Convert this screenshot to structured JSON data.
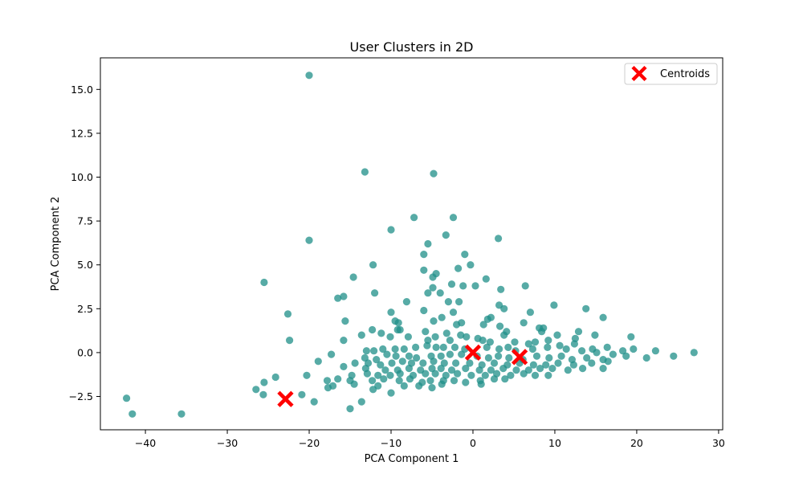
{
  "chart_data": {
    "type": "scatter",
    "title": "User Clusters in 2D",
    "xlabel": "PCA Component 1",
    "ylabel": "PCA Component 2",
    "xlim": [
      -45.5,
      30.5
    ],
    "ylim": [
      -4.4,
      16.8
    ],
    "xticks": [
      -40,
      -30,
      -20,
      -10,
      0,
      10,
      20,
      30
    ],
    "yticks": [
      -2.5,
      0.0,
      2.5,
      5.0,
      7.5,
      10.0,
      12.5,
      15.0
    ],
    "ytick_labels": [
      "−2.5",
      "0.0",
      "2.5",
      "5.0",
      "7.5",
      "10.0",
      "12.5",
      "15.0"
    ],
    "xtick_labels": [
      "−40",
      "−30",
      "−20",
      "−10",
      "0",
      "10",
      "20",
      "30"
    ],
    "grid": false,
    "legend": {
      "position": "top-right",
      "entries": [
        "Centroids"
      ]
    },
    "colors": {
      "points": "#1f8f88",
      "centroids": "#ff0000"
    },
    "series": [
      {
        "values": [
          [
            -20,
            15.8
          ],
          [
            -13.2,
            10.3
          ],
          [
            -4.8,
            10.2
          ],
          [
            -7.2,
            7.7
          ],
          [
            -2.4,
            7.7
          ],
          [
            -10,
            7.0
          ],
          [
            3.1,
            6.5
          ],
          [
            -3.3,
            6.7
          ],
          [
            -20,
            6.4
          ],
          [
            -5.5,
            6.2
          ],
          [
            -6,
            5.6
          ],
          [
            -1,
            5.6
          ],
          [
            -12.2,
            5.0
          ],
          [
            -1.8,
            4.8
          ],
          [
            -0.3,
            5.0
          ],
          [
            -6,
            4.7
          ],
          [
            -4.5,
            4.5
          ],
          [
            -4.9,
            4.3
          ],
          [
            -25.5,
            4.0
          ],
          [
            -14.6,
            4.3
          ],
          [
            -16.5,
            3.1
          ],
          [
            -15.8,
            3.2
          ],
          [
            -12,
            3.4
          ],
          [
            -4.9,
            3.7
          ],
          [
            -2.6,
            3.9
          ],
          [
            -1.2,
            3.8
          ],
          [
            0.3,
            3.8
          ],
          [
            1.6,
            4.2
          ],
          [
            3.4,
            3.6
          ],
          [
            6.4,
            3.8
          ],
          [
            -4,
            3.4
          ],
          [
            -5.5,
            3.4
          ],
          [
            -3,
            2.9
          ],
          [
            -1.7,
            2.9
          ],
          [
            -8.1,
            2.9
          ],
          [
            3.2,
            2.7
          ],
          [
            3.8,
            2.5
          ],
          [
            7,
            2.3
          ],
          [
            9.9,
            2.7
          ],
          [
            13.8,
            2.5
          ],
          [
            15.9,
            2.0
          ],
          [
            -22.6,
            2.2
          ],
          [
            -10,
            2.3
          ],
          [
            -6,
            2.4
          ],
          [
            -2.4,
            2.3
          ],
          [
            -3.8,
            2.0
          ],
          [
            -15.6,
            1.8
          ],
          [
            -9.5,
            1.8
          ],
          [
            -9.1,
            1.7
          ],
          [
            -4.8,
            1.8
          ],
          [
            -2,
            1.6
          ],
          [
            -1.4,
            1.7
          ],
          [
            1.8,
            1.9
          ],
          [
            2.2,
            2.0
          ],
          [
            1.3,
            1.6
          ],
          [
            3.3,
            1.5
          ],
          [
            6.2,
            1.7
          ],
          [
            8.1,
            1.4
          ],
          [
            8.6,
            1.4
          ],
          [
            12.9,
            1.2
          ],
          [
            14.9,
            1.0
          ],
          [
            -12.3,
            1.3
          ],
          [
            -11.2,
            1.1
          ],
          [
            -9.2,
            1.3
          ],
          [
            -8.9,
            1.3
          ],
          [
            -5.8,
            1.2
          ],
          [
            -3.2,
            1.1
          ],
          [
            -1.5,
            1.0
          ],
          [
            -0.8,
            0.9
          ],
          [
            3.8,
            1.0
          ],
          [
            4.1,
            1.2
          ],
          [
            8.4,
            1.2
          ],
          [
            9.2,
            0.7
          ],
          [
            10.3,
            1.0
          ],
          [
            12.5,
            0.8
          ],
          [
            19.3,
            0.9
          ],
          [
            -22.4,
            0.7
          ],
          [
            -15.8,
            0.7
          ],
          [
            -13.6,
            1.0
          ],
          [
            -10.1,
            0.9
          ],
          [
            -7.9,
            0.9
          ],
          [
            -5.5,
            0.7
          ],
          [
            -4.6,
            0.9
          ],
          [
            -2.8,
            0.7
          ],
          [
            0.6,
            0.8
          ],
          [
            1.2,
            0.7
          ],
          [
            2.1,
            0.6
          ],
          [
            5.1,
            0.6
          ],
          [
            6.8,
            0.5
          ],
          [
            7.6,
            0.6
          ],
          [
            10.6,
            0.4
          ],
          [
            12.4,
            0.5
          ],
          [
            14.6,
            0.2
          ],
          [
            16.4,
            0.3
          ],
          [
            18.3,
            0.1
          ],
          [
            19.6,
            0.2
          ],
          [
            22.3,
            0.1
          ],
          [
            -13,
            0.1
          ],
          [
            -12.1,
            0.1
          ],
          [
            -11,
            0.2
          ],
          [
            -9.5,
            0.2
          ],
          [
            -8.4,
            0.2
          ],
          [
            -7,
            0.3
          ],
          [
            -5.6,
            0.4
          ],
          [
            -4.5,
            0.3
          ],
          [
            -3.6,
            0.3
          ],
          [
            -2.2,
            0.3
          ],
          [
            -1,
            0.2
          ],
          [
            1.7,
            0.3
          ],
          [
            3.2,
            0.2
          ],
          [
            4.3,
            0.3
          ],
          [
            5.2,
            0.1
          ],
          [
            7.3,
            0.2
          ],
          [
            9.1,
            0.3
          ],
          [
            11.4,
            0.2
          ],
          [
            13.3,
            0.1
          ],
          [
            15.1,
            0.0
          ],
          [
            17.1,
            -0.1
          ],
          [
            24.5,
            -0.2
          ],
          [
            27,
            0.0
          ],
          [
            -17.3,
            -0.1
          ],
          [
            -13.2,
            -0.3
          ],
          [
            -11.8,
            -0.4
          ],
          [
            -10.5,
            -0.1
          ],
          [
            -9.4,
            -0.2
          ],
          [
            -7.8,
            -0.2
          ],
          [
            -6.9,
            -0.3
          ],
          [
            -5.1,
            -0.2
          ],
          [
            -3.9,
            -0.2
          ],
          [
            -2.8,
            -0.1
          ],
          [
            -1.4,
            -0.1
          ],
          [
            0.5,
            -0.2
          ],
          [
            1.9,
            -0.3
          ],
          [
            3.1,
            -0.2
          ],
          [
            4.4,
            -0.3
          ],
          [
            6.1,
            -0.4
          ],
          [
            7.8,
            -0.2
          ],
          [
            9.3,
            -0.3
          ],
          [
            10.8,
            -0.2
          ],
          [
            12.1,
            -0.4
          ],
          [
            13.9,
            -0.3
          ],
          [
            15.9,
            -0.4
          ],
          [
            18.7,
            -0.2
          ],
          [
            21.2,
            -0.3
          ],
          [
            -18.9,
            -0.5
          ],
          [
            -14.4,
            -0.6
          ],
          [
            -12.8,
            -0.6
          ],
          [
            -11.3,
            -0.7
          ],
          [
            -9.9,
            -0.6
          ],
          [
            -8.6,
            -0.5
          ],
          [
            -7.5,
            -0.6
          ],
          [
            -6.1,
            -0.6
          ],
          [
            -4.8,
            -0.5
          ],
          [
            -3.5,
            -0.6
          ],
          [
            -2.1,
            -0.6
          ],
          [
            -0.4,
            -0.6
          ],
          [
            1.1,
            -0.7
          ],
          [
            2.6,
            -0.6
          ],
          [
            4.2,
            -0.7
          ],
          [
            5.7,
            -0.6
          ],
          [
            7.4,
            -0.7
          ],
          [
            8.9,
            -0.7
          ],
          [
            10.4,
            -0.6
          ],
          [
            12.3,
            -0.7
          ],
          [
            14.5,
            -0.6
          ],
          [
            16.5,
            -0.5
          ],
          [
            -15.8,
            -0.8
          ],
          [
            -13.1,
            -0.9
          ],
          [
            -10.7,
            -1.0
          ],
          [
            -9.2,
            -1.0
          ],
          [
            -7.8,
            -0.9
          ],
          [
            -6.4,
            -1.0
          ],
          [
            -5,
            -0.9
          ],
          [
            -3.9,
            -0.9
          ],
          [
            -2.6,
            -1.0
          ],
          [
            -0.9,
            -0.9
          ],
          [
            0.8,
            -1.0
          ],
          [
            2.2,
            -1.0
          ],
          [
            3.7,
            -0.9
          ],
          [
            5.3,
            -1.0
          ],
          [
            6.8,
            -1.0
          ],
          [
            8.2,
            -0.9
          ],
          [
            9.7,
            -0.9
          ],
          [
            11.6,
            -1.0
          ],
          [
            13.4,
            -0.9
          ],
          [
            15.9,
            -0.9
          ],
          [
            -20.3,
            -1.3
          ],
          [
            -16.5,
            -1.5
          ],
          [
            -14.8,
            -1.3
          ],
          [
            -12.9,
            -1.2
          ],
          [
            -11.6,
            -1.3
          ],
          [
            -10.1,
            -1.3
          ],
          [
            -8.9,
            -1.2
          ],
          [
            -7.3,
            -1.3
          ],
          [
            -5.8,
            -1.2
          ],
          [
            -4.6,
            -1.2
          ],
          [
            -3.3,
            -1.3
          ],
          [
            -1.9,
            -1.2
          ],
          [
            -0.2,
            -1.3
          ],
          [
            1.5,
            -1.3
          ],
          [
            2.9,
            -1.2
          ],
          [
            4.6,
            -1.3
          ],
          [
            6.2,
            -1.2
          ],
          [
            7.6,
            -1.3
          ],
          [
            9.2,
            -1.3
          ],
          [
            -24.1,
            -1.4
          ],
          [
            -17.8,
            -1.6
          ],
          [
            -15,
            -1.6
          ],
          [
            -12.3,
            -1.6
          ],
          [
            -10.9,
            -1.5
          ],
          [
            -9,
            -1.6
          ],
          [
            -7.7,
            -1.5
          ],
          [
            -6.2,
            -1.7
          ],
          [
            -5.2,
            -1.6
          ],
          [
            -3.6,
            -1.6
          ],
          [
            -2.3,
            -1.6
          ],
          [
            0.9,
            -1.6
          ],
          [
            2.6,
            -1.5
          ],
          [
            3.9,
            -1.5
          ],
          [
            -25.5,
            -1.7
          ],
          [
            -17.1,
            -1.9
          ],
          [
            -14.5,
            -1.8
          ],
          [
            -11.6,
            -1.9
          ],
          [
            -8.4,
            -1.9
          ],
          [
            -6.6,
            -1.9
          ],
          [
            -5,
            -2.0
          ],
          [
            -3.8,
            -1.8
          ],
          [
            -0.9,
            -1.7
          ],
          [
            1,
            -1.8
          ],
          [
            -26.5,
            -2.1
          ],
          [
            -17.7,
            -2.0
          ],
          [
            -12.2,
            -2.1
          ],
          [
            -10,
            -2.3
          ],
          [
            -20.9,
            -2.4
          ],
          [
            -25.6,
            -2.4
          ],
          [
            -19.4,
            -2.8
          ],
          [
            -13.6,
            -2.8
          ],
          [
            -15,
            -3.2
          ],
          [
            -42.3,
            -2.6
          ],
          [
            -41.6,
            -3.5
          ],
          [
            -35.6,
            -3.5
          ]
        ]
      },
      {
        "name": "Centroids",
        "values": [
          [
            -22.9,
            -2.65
          ],
          [
            0.0,
            0.0
          ],
          [
            5.7,
            -0.25
          ]
        ]
      }
    ]
  }
}
